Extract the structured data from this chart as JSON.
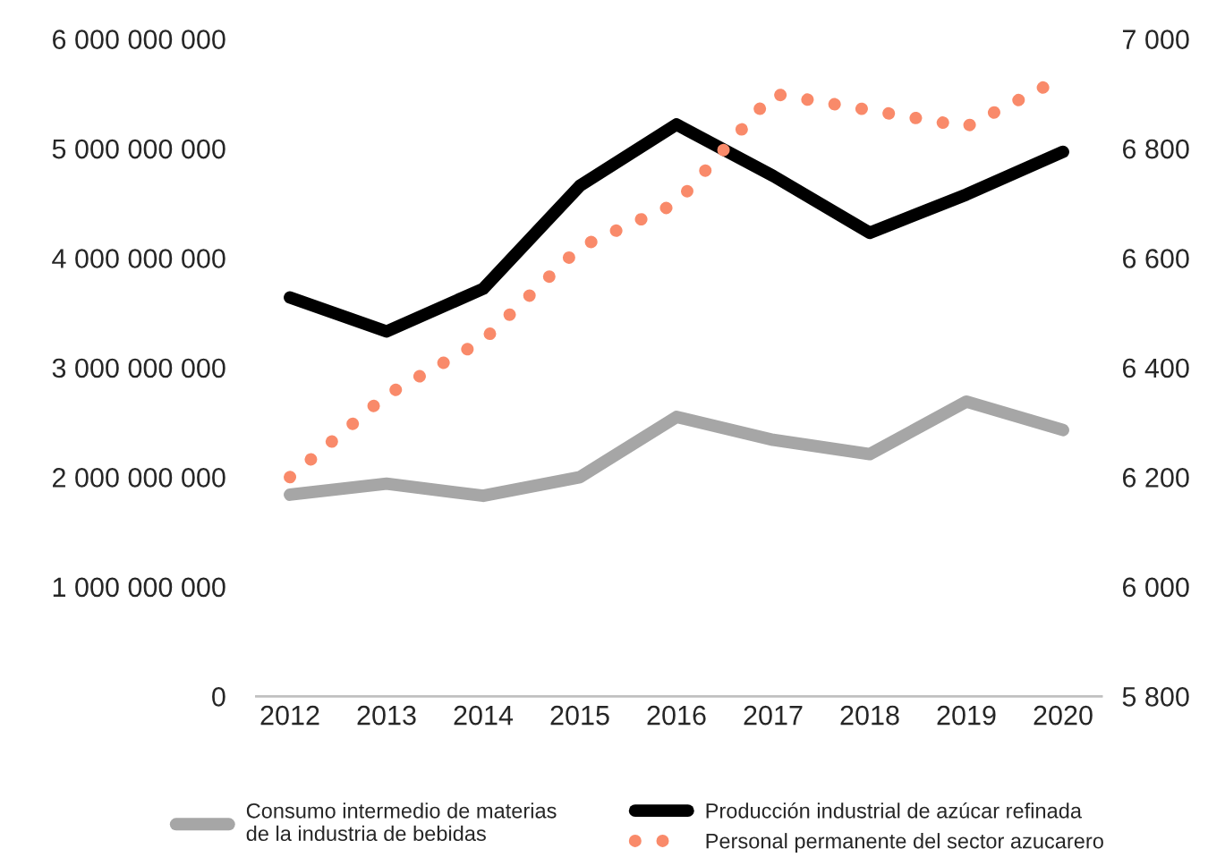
{
  "chart_data": {
    "type": "line",
    "categories": [
      "2012",
      "2013",
      "2014",
      "2015",
      "2016",
      "2017",
      "2018",
      "2019",
      "2020"
    ],
    "series": [
      {
        "name": "Consumo intermedio de materias de la industria de bebidas",
        "color": "#a6a6a6",
        "line_style": "solid",
        "values": [
          1840000000,
          1940000000,
          1830000000,
          2000000000,
          2550000000,
          2340000000,
          2210000000,
          2690000000,
          2430000000
        ]
      },
      {
        "name": "Producción industrial de azúcar refinada",
        "color": "#000000",
        "line_style": "solid",
        "values": [
          3640000000,
          3330000000,
          3720000000,
          4660000000,
          5220000000,
          4750000000,
          4230000000,
          4580000000,
          4970000000
        ]
      },
      {
        "name": "Personal permanente del sector azucarero",
        "color": "#f98a6a",
        "line_style": "dotted",
        "axis": "y2",
        "values": [
          6200,
          6350,
          6450,
          6620,
          6700,
          6900,
          6870,
          6840,
          6930
        ]
      }
    ],
    "ylim": [
      0,
      6000000000
    ],
    "yticks": [
      {
        "value": 0,
        "label": "0"
      },
      {
        "value": 1000000000,
        "label": "1 000 000 000"
      },
      {
        "value": 2000000000,
        "label": "2 000 000 000"
      },
      {
        "value": 3000000000,
        "label": "3 000 000 000"
      },
      {
        "value": 4000000000,
        "label": "4 000 000 000"
      },
      {
        "value": 5000000000,
        "label": "5 000 000 000"
      },
      {
        "value": 6000000000,
        "label": "6 000 000 000"
      }
    ],
    "y2lim": [
      5800,
      7000
    ],
    "y2ticks": [
      {
        "value": 5800,
        "label": "5 800"
      },
      {
        "value": 6000,
        "label": "6 000"
      },
      {
        "value": 6200,
        "label": "6 200"
      },
      {
        "value": 6400,
        "label": "6 400"
      },
      {
        "value": 6600,
        "label": "6 600"
      },
      {
        "value": 6800,
        "label": "6 800"
      },
      {
        "value": 7000,
        "label": "7 000"
      }
    ],
    "grid": false,
    "legend": "bottom",
    "marker": "none"
  }
}
